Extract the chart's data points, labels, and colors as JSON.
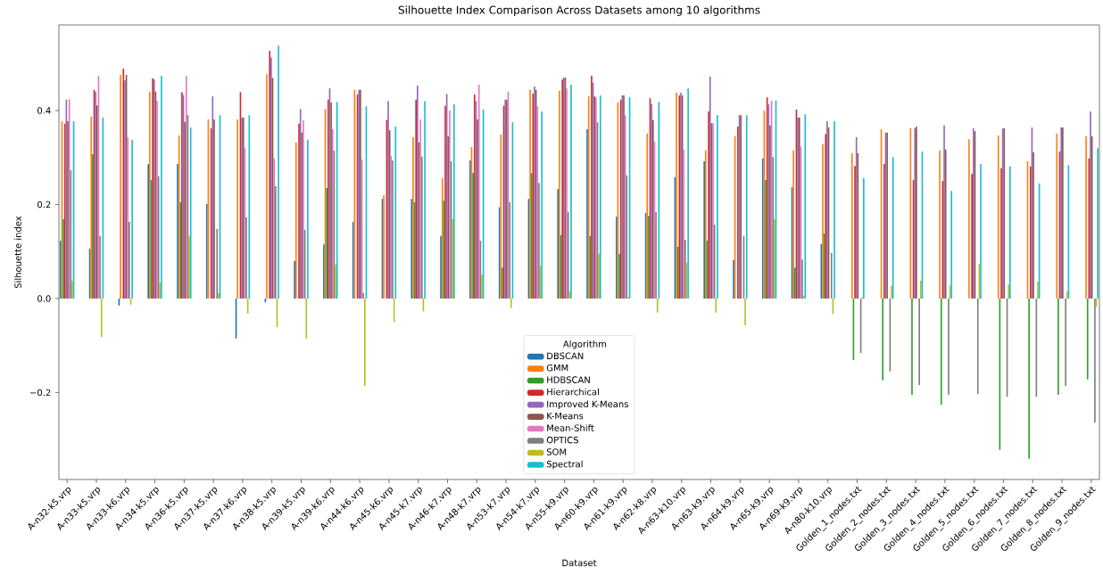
{
  "chart_data": {
    "type": "bar",
    "title": "Silhouette Index Comparison Across Datasets among 10 algorithms",
    "xlabel": "Dataset",
    "ylabel": "Silhouette index",
    "legend_title": "Algorithm",
    "legend": "bottom",
    "grid": false,
    "categories": [
      "A-n32-k5.vrp",
      "A-n33-k5.vrp",
      "A-n33-k6.vrp",
      "A-n34-k5.vrp",
      "A-n36-k5.vrp",
      "A-n37-k5.vrp",
      "A-n37-k6.vrp",
      "A-n38-k5.vrp",
      "A-n39-k5.vrp",
      "A-n39-k6.vrp",
      "A-n44-k6.vrp",
      "A-n45-k6.vrp",
      "A-n45-k7.vrp",
      "A-n46-k7.vrp",
      "A-n48-k7.vrp",
      "A-n53-k7.vrp",
      "A-n54-k7.vrp",
      "A-n55-k9.vrp",
      "A-n60-k9.vrp",
      "A-n61-k9.vrp",
      "A-n62-k8.vrp",
      "A-n63-k10.vrp",
      "A-n63-k9.vrp",
      "A-n64-k9.vrp",
      "A-n65-k9.vrp",
      "A-n69-k9.vrp",
      "A-n80-k10.vrp",
      "Golden_1_nodes.txt",
      "Golden_2_nodes.txt",
      "Golden_3_nodes.txt",
      "Golden_4_nodes.txt",
      "Golden_5_nodes.txt",
      "Golden_6_nodes.txt",
      "Golden_7_nodes.txt",
      "Golden_8_nodes.txt",
      "Golden_9_nodes.txt"
    ],
    "ylim": [
      -0.385,
      0.582
    ],
    "yticks": [
      {
        "value": -0.2,
        "label": "−0.2"
      },
      {
        "value": 0,
        "label": "0.0"
      },
      {
        "value": 0.2,
        "label": "0.2"
      },
      {
        "value": 0.4,
        "label": "0.4"
      }
    ],
    "series": [
      {
        "name": "DBSCAN",
        "color": "#1f77b4",
        "values": [
          0.123,
          0.106,
          -0.015,
          0.286,
          0.286,
          0.201,
          -0.085,
          -0.008,
          0.08,
          0.115,
          0.163,
          0.212,
          0.212,
          0.133,
          0.294,
          0.194,
          0.212,
          0.233,
          0.36,
          0.174,
          0.182,
          0.258,
          0.292,
          0.082,
          0.298,
          0.237,
          0.116,
          0,
          0,
          0,
          0,
          0,
          0,
          0,
          0,
          0
        ]
      },
      {
        "name": "GMM",
        "color": "#ff7f0e",
        "values": [
          0.377,
          0.387,
          0.476,
          0.44,
          0.347,
          0.381,
          0.381,
          0.477,
          0.332,
          0.403,
          0.444,
          0.22,
          0.343,
          0.256,
          0.322,
          0.349,
          0.444,
          0.442,
          0.43,
          0.417,
          0.351,
          0.438,
          0.315,
          0.345,
          0.4,
          0.315,
          0.328,
          0.309,
          0.36,
          0.362,
          0.315,
          0.339,
          0.347,
          0.292,
          0.351,
          0.345
        ]
      },
      {
        "name": "HDBSCAN",
        "color": "#2ca02c",
        "values": [
          0.169,
          0.307,
          0,
          0.252,
          0.205,
          0,
          0,
          0,
          0,
          0.235,
          0,
          0,
          0.205,
          0.208,
          0.267,
          0.066,
          0.267,
          0.135,
          0.133,
          0.095,
          0.176,
          0.11,
          0.123,
          0,
          0.252,
          0.066,
          0.138,
          -0.131,
          -0.174,
          -0.205,
          -0.226,
          0,
          -0.322,
          -0.341,
          -0.205,
          -0.172
        ]
      },
      {
        "name": "Hierarchical",
        "color": "#d62728",
        "values": [
          0.372,
          0.444,
          0.489,
          0.468,
          0.439,
          0.362,
          0.439,
          0.527,
          0.372,
          0.423,
          0.434,
          0.38,
          0.423,
          0.41,
          0.434,
          0.41,
          0.436,
          0.466,
          0.474,
          0.423,
          0.426,
          0.432,
          0.398,
          0.366,
          0.428,
          0.402,
          0.35,
          0.282,
          0.286,
          0.252,
          0.25,
          0.265,
          0.277,
          0.281,
          0.313,
          0.298
        ]
      },
      {
        "name": "Improved K-Means",
        "color": "#9467bd",
        "values": [
          0.423,
          0.44,
          0.464,
          0.466,
          0.433,
          0.43,
          0.385,
          0.513,
          0.403,
          0.447,
          0.444,
          0.42,
          0.453,
          0.435,
          0.42,
          0.423,
          0.451,
          0.47,
          0.459,
          0.432,
          0.413,
          0.438,
          0.472,
          0.39,
          0.413,
          0.385,
          0.377,
          0.343,
          0.353,
          0.362,
          0.368,
          0.362,
          0.362,
          0.364,
          0.364,
          0.398
        ]
      },
      {
        "name": "K-Means",
        "color": "#8c564b",
        "values": [
          0.377,
          0.411,
          0.476,
          0.44,
          0.376,
          0.381,
          0.385,
          0.469,
          0.353,
          0.417,
          0.444,
          0.358,
          0.332,
          0.345,
          0.381,
          0.423,
          0.444,
          0.47,
          0.43,
          0.432,
          0.38,
          0.432,
          0.373,
          0.39,
          0.368,
          0.385,
          0.364,
          0.309,
          0.353,
          0.366,
          0.317,
          0.356,
          0.362,
          0.311,
          0.364,
          0.345
        ]
      },
      {
        "name": "Mean-Shift",
        "color": "#e377c2",
        "values": [
          0.424,
          0.474,
          0.343,
          0.421,
          0.474,
          0,
          0.32,
          0.298,
          0.379,
          0.36,
          0.296,
          0.303,
          0.381,
          0.4,
          0.455,
          0.44,
          0.409,
          0.447,
          0.428,
          0.39,
          0.334,
          0.317,
          0.373,
          0,
          0.421,
          0.324,
          0,
          0,
          0,
          0,
          0,
          0,
          0,
          0,
          0,
          0
        ]
      },
      {
        "name": "OPTICS",
        "color": "#7f7f7f",
        "values": [
          0.273,
          0.133,
          0.163,
          0.26,
          0.39,
          0.148,
          0.173,
          0.239,
          0.146,
          0.315,
          0.012,
          0.294,
          0.302,
          0.292,
          0.123,
          0.205,
          0.246,
          0.184,
          0.375,
          0.262,
          0.184,
          0.125,
          0.157,
          0.133,
          0.301,
          0.083,
          0.097,
          -0.116,
          -0.155,
          -0.184,
          -0.205,
          -0.203,
          -0.209,
          -0.209,
          -0.186,
          -0.264
        ]
      },
      {
        "name": "SOM",
        "color": "#bcbd22",
        "values": [
          0.038,
          -0.082,
          -0.013,
          0.034,
          0.133,
          0.012,
          -0.032,
          -0.061,
          -0.085,
          0.072,
          -0.186,
          -0.05,
          -0.027,
          0.169,
          0.05,
          -0.02,
          0.07,
          0.015,
          0.095,
          0.003,
          -0.03,
          0.076,
          -0.03,
          -0.057,
          0.169,
          0.006,
          -0.033,
          0.003,
          0.027,
          0.038,
          0.028,
          0.074,
          0.03,
          0.036,
          0.015,
          -0.017
        ]
      },
      {
        "name": "Spectral",
        "color": "#17becf",
        "values": [
          0.377,
          0.385,
          0.338,
          0.474,
          0.364,
          0.39,
          0.39,
          0.538,
          0.338,
          0.418,
          0.409,
          0.366,
          0.42,
          0.413,
          0.402,
          0.375,
          0.398,
          0.455,
          0.432,
          0.428,
          0.418,
          0.447,
          0.39,
          0.39,
          0.421,
          0.392,
          0.377,
          0.256,
          0.301,
          0.313,
          0.229,
          0.286,
          0.281,
          0.245,
          0.284,
          0.32
        ]
      }
    ]
  }
}
